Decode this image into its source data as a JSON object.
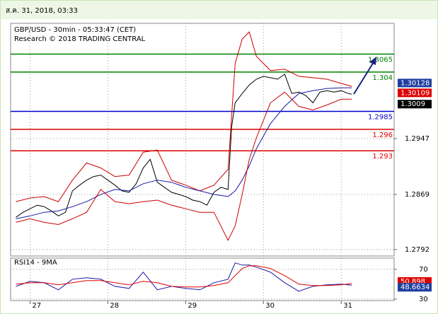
{
  "header": "ส.ค. 31, 2018, 03:33",
  "chart_data": {
    "type": "line",
    "title": "GBP/USD - 30min - 05:33:47 (CET)",
    "subtitle": "Research © 2018 TRADING CENTRAL",
    "xlim": [
      26.75,
      31.68
    ],
    "xticks": [
      27,
      28,
      29,
      30,
      31
    ],
    "ylim": [
      1.2783,
      1.3108
    ],
    "yticks": [
      1.2947,
      1.2869,
      1.2792
    ],
    "grid": true,
    "series": [
      {
        "color": "#000000",
        "x": [
          26.818,
          26.909,
          27.0,
          27.091,
          27.182,
          27.273,
          27.364,
          27.455,
          27.545,
          27.636,
          27.727,
          27.818,
          27.909,
          28.0,
          28.091,
          28.182,
          28.273,
          28.364,
          28.455,
          28.545,
          28.636,
          28.727,
          28.818,
          28.909,
          29.0,
          29.091,
          29.182,
          29.273,
          29.364,
          29.455,
          29.545,
          29.591,
          29.636,
          29.727,
          29.818,
          29.909,
          30.0,
          30.091,
          30.182,
          30.273,
          30.364,
          30.455,
          30.545,
          30.636,
          30.727,
          30.818,
          30.909,
          31.0,
          31.091,
          31.136
        ],
        "values": [
          1.2837,
          1.2844,
          1.2849,
          1.2854,
          1.2852,
          1.2846,
          1.2839,
          1.2844,
          1.2874,
          1.2882,
          1.2889,
          1.2894,
          1.2896,
          1.2889,
          1.2882,
          1.2874,
          1.2872,
          1.2884,
          1.2906,
          1.2918,
          1.2886,
          1.2879,
          1.2872,
          1.2869,
          1.2866,
          1.2861,
          1.2859,
          1.2854,
          1.2872,
          1.2879,
          1.2876,
          1.2963,
          1.2997,
          1.301,
          1.3022,
          1.303,
          1.3034,
          1.3032,
          1.303,
          1.3037,
          1.301,
          1.3012,
          1.3007,
          1.2997,
          1.3012,
          1.3014,
          1.3012,
          1.3014,
          1.301,
          1.3009
        ]
      },
      {
        "color": "#cc0000",
        "x": [
          26.818,
          27.0,
          27.182,
          27.364,
          27.545,
          27.727,
          27.909,
          28.091,
          28.273,
          28.455,
          28.636,
          28.818,
          29.0,
          29.182,
          29.364,
          29.545,
          29.636,
          29.727,
          29.818,
          29.909,
          30.091,
          30.273,
          30.455,
          30.636,
          30.818,
          31.0,
          31.136
        ],
        "values": [
          1.2859,
          1.2864,
          1.2866,
          1.2859,
          1.2889,
          1.2913,
          1.2906,
          1.2894,
          1.2896,
          1.2928,
          1.2931,
          1.2889,
          1.2882,
          1.2874,
          1.2882,
          1.2904,
          1.3052,
          1.3086,
          1.3096,
          1.3062,
          1.3042,
          1.3044,
          1.3034,
          1.3032,
          1.303,
          1.3024,
          1.302
        ]
      },
      {
        "color": "#1a1aa6",
        "x": [
          26.818,
          27.0,
          27.182,
          27.364,
          27.545,
          27.727,
          27.909,
          28.091,
          28.273,
          28.455,
          28.636,
          28.818,
          29.0,
          29.182,
          29.364,
          29.545,
          29.636,
          29.727,
          29.818,
          29.909,
          30.091,
          30.273,
          30.455,
          30.636,
          30.818,
          31.0,
          31.136
        ],
        "values": [
          1.2835,
          1.2839,
          1.2844,
          1.2846,
          1.2852,
          1.2859,
          1.2869,
          1.2876,
          1.2874,
          1.2884,
          1.2889,
          1.2886,
          1.2879,
          1.2874,
          1.2869,
          1.2866,
          1.2874,
          1.2889,
          1.2909,
          1.2933,
          1.2968,
          1.2992,
          1.301,
          1.3014,
          1.3017,
          1.3018,
          1.3018
        ]
      },
      {
        "color": "#cc0000",
        "x": [
          26.818,
          27.0,
          27.182,
          27.364,
          27.545,
          27.727,
          27.909,
          28.091,
          28.273,
          28.455,
          28.636,
          28.818,
          29.0,
          29.182,
          29.364,
          29.545,
          29.636,
          29.727,
          29.818,
          29.909,
          30.091,
          30.273,
          30.455,
          30.636,
          30.818,
          31.0,
          31.136
        ],
        "values": [
          1.283,
          1.2835,
          1.283,
          1.2827,
          1.2835,
          1.2844,
          1.2876,
          1.2859,
          1.2856,
          1.2859,
          1.2861,
          1.2854,
          1.2849,
          1.2844,
          1.2844,
          1.2805,
          1.2825,
          1.2869,
          1.2918,
          1.2948,
          1.2997,
          1.3012,
          1.2992,
          1.2987,
          1.2994,
          1.3002,
          1.3002
        ]
      }
    ],
    "levels": [
      {
        "value": 1.3065,
        "color": "#008000"
      },
      {
        "value": 1.304,
        "color": "#008000"
      },
      {
        "value": 1.2985,
        "color": "#0000cc"
      },
      {
        "value": 1.296,
        "color": "#dd0000"
      },
      {
        "value": 1.293,
        "color": "#dd0000"
      }
    ],
    "markers": [
      {
        "value": 1.30128,
        "color": "#1f3f9f"
      },
      {
        "value": 1.30109,
        "color": "#dd0000"
      },
      {
        "value": 1.3009,
        "color": "#000000"
      }
    ],
    "rsi": {
      "title": "RSI14 - 9MA",
      "ylim": [
        28,
        85
      ],
      "yticks": [
        70,
        30
      ],
      "series": [
        {
          "color": "#1a1aa6",
          "x": [
            26.818,
            27.0,
            27.182,
            27.364,
            27.545,
            27.727,
            27.909,
            28.091,
            28.273,
            28.455,
            28.636,
            28.818,
            29.0,
            29.182,
            29.364,
            29.545,
            29.636,
            29.727,
            29.818,
            29.909,
            30.091,
            30.273,
            30.455,
            30.636,
            30.818,
            31.0,
            31.136
          ],
          "values": [
            47.1,
            53.8,
            51.9,
            42.4,
            56.7,
            58.6,
            56.7,
            47.1,
            44.3,
            66.2,
            42.4,
            47.1,
            44.3,
            42.4,
            51.9,
            56.7,
            78.6,
            75.7,
            75.7,
            72.9,
            66.2,
            51.9,
            40.5,
            47.1,
            49.1,
            50.0,
            48.7
          ]
        },
        {
          "color": "#dd0000",
          "x": [
            26.818,
            27.0,
            27.182,
            27.364,
            27.545,
            27.727,
            27.909,
            28.091,
            28.273,
            28.455,
            28.636,
            28.818,
            29.0,
            29.182,
            29.364,
            29.545,
            29.636,
            29.727,
            29.818,
            29.909,
            30.091,
            30.273,
            30.455,
            30.636,
            30.818,
            31.0,
            31.136
          ],
          "values": [
            50.0,
            51.9,
            51.9,
            49.1,
            51.9,
            54.8,
            54.8,
            51.9,
            49.1,
            53.8,
            51.9,
            47.1,
            46.2,
            46.2,
            48.1,
            51.9,
            61.4,
            71.0,
            74.8,
            74.8,
            71.0,
            61.4,
            50.0,
            48.1,
            48.1,
            49.1,
            50.9
          ]
        }
      ],
      "markers": [
        {
          "value": 50.898,
          "color": "#dd0000"
        },
        {
          "value": 48.6634,
          "color": "#1f3f9f"
        }
      ]
    }
  }
}
